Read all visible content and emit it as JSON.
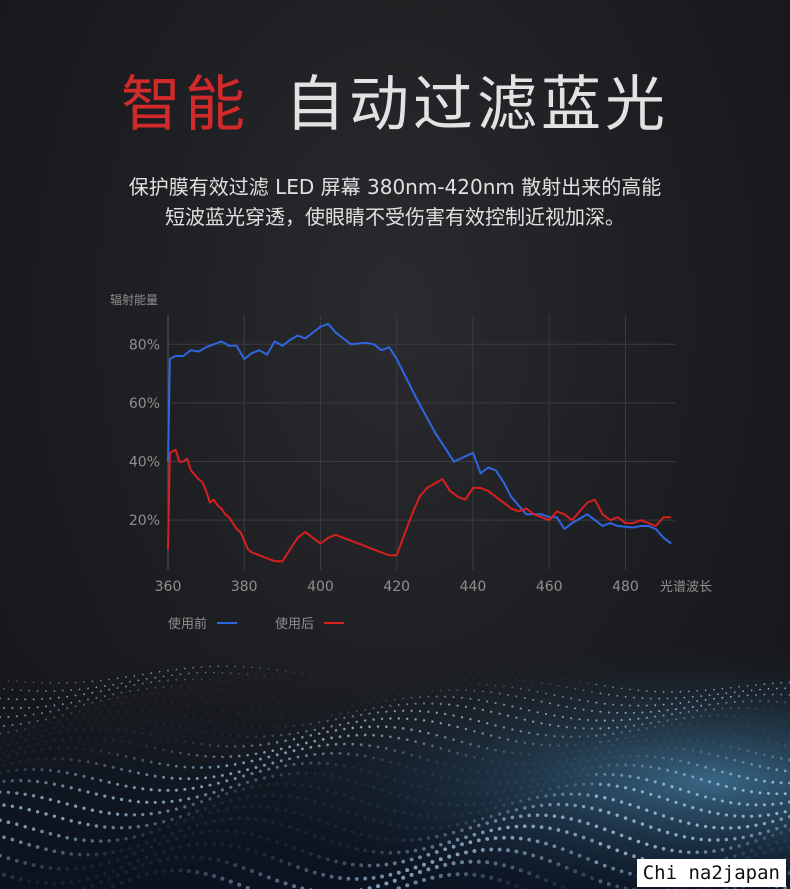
{
  "heading": {
    "accent": "智能",
    "main": "自动过滤蓝光"
  },
  "description": {
    "line1": "保护膜有效过滤 LED 屏幕 380nm-420nm 散射出来的高能",
    "line2": "短波蓝光穿透，使眼睛不受伤害有效控制近视加深。"
  },
  "watermark": "Chi na2japan",
  "colors": {
    "before": "#2f66e0",
    "after": "#d81f1f",
    "grid": "#3b3c40",
    "axis_text": "#8f8f8f"
  },
  "chart_data": {
    "type": "line",
    "ylabel": "辐射能量",
    "xlabel": "光谱波长",
    "xlim": [
      360,
      493
    ],
    "ylim": [
      3,
      90
    ],
    "x_ticks": [
      360,
      380,
      400,
      420,
      440,
      460,
      480
    ],
    "y_ticks": [
      20,
      40,
      60,
      80
    ],
    "y_tick_labels": [
      "20%",
      "40%",
      "60%",
      "80%"
    ],
    "grid": true,
    "legend_position": "bottom-left",
    "series": [
      {
        "name": "使用前",
        "color": "#2f66e0",
        "points": [
          [
            360,
            40
          ],
          [
            360.5,
            75
          ],
          [
            362,
            76
          ],
          [
            364,
            76
          ],
          [
            366,
            78
          ],
          [
            368,
            77.5
          ],
          [
            370,
            79
          ],
          [
            372,
            80
          ],
          [
            374,
            81
          ],
          [
            376,
            79.5
          ],
          [
            378,
            79.5
          ],
          [
            380,
            75
          ],
          [
            382,
            77
          ],
          [
            384,
            78
          ],
          [
            386,
            76.5
          ],
          [
            388,
            81
          ],
          [
            390,
            79.5
          ],
          [
            392,
            81.5
          ],
          [
            394,
            83
          ],
          [
            396,
            82
          ],
          [
            398,
            84
          ],
          [
            400,
            86
          ],
          [
            402,
            87
          ],
          [
            404,
            84
          ],
          [
            406,
            82
          ],
          [
            408,
            80
          ],
          [
            412,
            80.5
          ],
          [
            414,
            80
          ],
          [
            416,
            78
          ],
          [
            418,
            79
          ],
          [
            420,
            75
          ],
          [
            425,
            62
          ],
          [
            430,
            50
          ],
          [
            435,
            40
          ],
          [
            440,
            43
          ],
          [
            442,
            36
          ],
          [
            444,
            38
          ],
          [
            446,
            37
          ],
          [
            448,
            33
          ],
          [
            450,
            28
          ],
          [
            454,
            22
          ],
          [
            458,
            22
          ],
          [
            460,
            21
          ],
          [
            462,
            21
          ],
          [
            464,
            17
          ],
          [
            466,
            19
          ],
          [
            470,
            22
          ],
          [
            474,
            18
          ],
          [
            476,
            19
          ],
          [
            478,
            18
          ],
          [
            482,
            17.5
          ],
          [
            484,
            18
          ],
          [
            486,
            18
          ],
          [
            488,
            17
          ],
          [
            490,
            14
          ],
          [
            492,
            12
          ]
        ]
      },
      {
        "name": "使用后",
        "color": "#d81f1f",
        "points": [
          [
            360,
            10
          ],
          [
            360.5,
            43
          ],
          [
            362,
            44
          ],
          [
            363,
            40
          ],
          [
            364,
            40
          ],
          [
            365,
            41
          ],
          [
            366,
            37
          ],
          [
            368,
            34
          ],
          [
            369,
            33
          ],
          [
            370,
            30
          ],
          [
            371,
            26
          ],
          [
            372,
            27
          ],
          [
            373,
            25
          ],
          [
            374,
            24
          ],
          [
            375,
            22
          ],
          [
            376,
            21
          ],
          [
            377,
            19
          ],
          [
            378,
            17
          ],
          [
            379,
            16
          ],
          [
            380,
            13
          ],
          [
            381,
            10
          ],
          [
            382,
            9
          ],
          [
            384,
            8
          ],
          [
            386,
            7
          ],
          [
            388,
            6
          ],
          [
            390,
            6
          ],
          [
            392,
            10
          ],
          [
            394,
            14
          ],
          [
            396,
            16
          ],
          [
            398,
            14
          ],
          [
            400,
            12
          ],
          [
            402,
            14
          ],
          [
            404,
            15
          ],
          [
            406,
            14
          ],
          [
            408,
            13
          ],
          [
            410,
            12
          ],
          [
            412,
            11
          ],
          [
            414,
            10
          ],
          [
            416,
            9
          ],
          [
            418,
            8
          ],
          [
            420,
            8
          ],
          [
            422,
            15
          ],
          [
            424,
            22
          ],
          [
            426,
            28
          ],
          [
            428,
            31
          ],
          [
            432,
            34
          ],
          [
            434,
            30
          ],
          [
            436,
            28
          ],
          [
            438,
            27
          ],
          [
            440,
            31
          ],
          [
            442,
            31
          ],
          [
            444,
            30
          ],
          [
            446,
            28
          ],
          [
            448,
            26
          ],
          [
            450,
            24
          ],
          [
            452,
            23
          ],
          [
            454,
            24
          ],
          [
            456,
            22
          ],
          [
            458,
            21
          ],
          [
            460,
            20
          ],
          [
            462,
            23
          ],
          [
            464,
            22
          ],
          [
            466,
            20
          ],
          [
            468,
            23
          ],
          [
            470,
            26
          ],
          [
            472,
            27
          ],
          [
            474,
            22
          ],
          [
            476,
            20
          ],
          [
            478,
            21
          ],
          [
            480,
            19
          ],
          [
            482,
            19
          ],
          [
            484,
            20
          ],
          [
            486,
            19
          ],
          [
            488,
            18
          ],
          [
            490,
            21
          ],
          [
            492,
            21
          ]
        ]
      }
    ]
  }
}
